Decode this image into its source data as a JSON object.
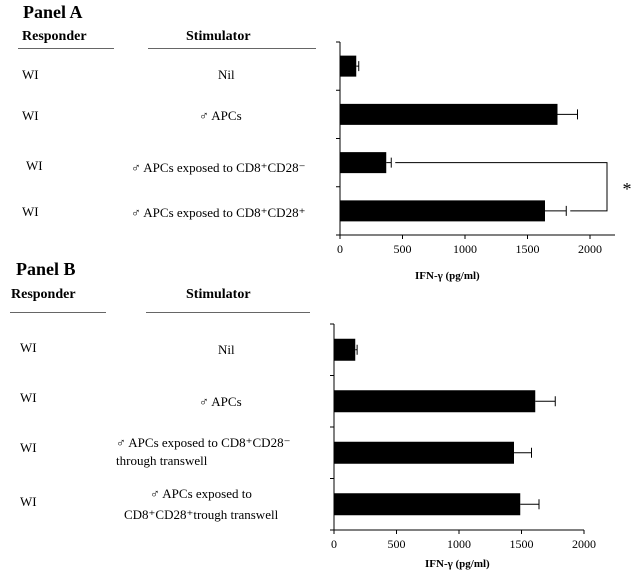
{
  "chart_data": [
    {
      "type": "bar",
      "orientation": "horizontal",
      "panel_title": "Panel A",
      "responder_header": "Responder",
      "stimulator_header": "Stimulator",
      "categories": [
        {
          "responder": "WI",
          "stimulator": [
            "Nil"
          ]
        },
        {
          "responder": "WI",
          "stimulator": [
            "♂ APCs"
          ]
        },
        {
          "responder": "WI",
          "stimulator": [
            "♂ APCs exposed to CD8⁺CD28⁻"
          ]
        },
        {
          "responder": "WI",
          "stimulator": [
            "♂ APCs exposed to CD8⁺CD28⁺"
          ]
        }
      ],
      "values": [
        130,
        1740,
        370,
        1640
      ],
      "errors": [
        20,
        160,
        40,
        170
      ],
      "xlabel": "IFN-γ (pg/ml)",
      "xlim": [
        0,
        2200
      ],
      "xticks": [
        "0",
        "500",
        "1000",
        "1500",
        "2000"
      ],
      "significance": {
        "between": [
          2,
          3
        ],
        "label": "*"
      },
      "bar_color": "#000000"
    },
    {
      "type": "bar",
      "orientation": "horizontal",
      "panel_title": "Panel B",
      "responder_header": "Responder",
      "stimulator_header": "Stimulator",
      "categories": [
        {
          "responder": "WI",
          "stimulator": [
            "Nil"
          ]
        },
        {
          "responder": "WI",
          "stimulator": [
            "♂ APCs"
          ]
        },
        {
          "responder": "WI",
          "stimulator": [
            "♂ APCs exposed to  CD8⁺CD28⁻",
            "through transwell"
          ]
        },
        {
          "responder": "WI",
          "stimulator": [
            "♂ APCs exposed to",
            "CD8⁺CD28⁺trough transwell"
          ]
        }
      ],
      "values": [
        170,
        1610,
        1440,
        1490
      ],
      "errors": [
        15,
        160,
        140,
        150
      ],
      "xlabel": "IFN-γ (pg/ml)",
      "xlim": [
        0,
        2000
      ],
      "xticks": [
        "0",
        "500",
        "1000",
        "1500",
        "2000"
      ],
      "bar_color": "#000000"
    }
  ]
}
